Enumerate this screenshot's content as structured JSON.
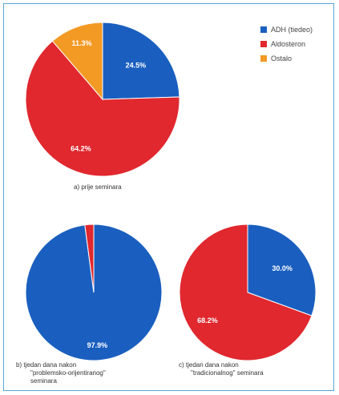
{
  "chart_data": [
    {
      "type": "pie",
      "caption": "a) prije seminara",
      "slices": [
        {
          "name": "ADH (tiedeo)",
          "value": 24.5,
          "label": "24.5%",
          "color": "#1a5fbf"
        },
        {
          "name": "Aldosteron",
          "value": 64.2,
          "label": "64.2%",
          "color": "#e0282e"
        },
        {
          "name": "Ostalo",
          "value": 11.3,
          "label": "11.3%",
          "color": "#f39a25"
        }
      ],
      "legend": {
        "placement": "top-right",
        "entries": [
          {
            "name": "ADH (tiedeo)",
            "color": "#1a5fbf"
          },
          {
            "name": "Aldosteron",
            "color": "#e0282e"
          },
          {
            "name": "Ostalo",
            "color": "#f39a25"
          }
        ]
      }
    },
    {
      "type": "pie",
      "caption_lines": [
        "b) tjedan dana nakon",
        "\"problemsko-orijentiranog\"",
        "seminara"
      ],
      "slices": [
        {
          "name": "ADH (tiedeo)",
          "value": 97.9,
          "label": "97.9%",
          "color": "#1a5fbf"
        },
        {
          "name": "Aldosteron",
          "value": 2.1,
          "label": "",
          "color": "#e0282e"
        }
      ]
    },
    {
      "type": "pie",
      "caption_lines": [
        "c) tjedan dana nakon",
        "\"tradicionalnog\" seminara"
      ],
      "slices": [
        {
          "name": "ADH (tiedeo)",
          "value": 30.0,
          "label": "30.0%",
          "color": "#1a5fbf"
        },
        {
          "name": "Aldosteron",
          "value": 68.2,
          "label": "68.2%",
          "color": "#e0282e"
        }
      ]
    }
  ]
}
